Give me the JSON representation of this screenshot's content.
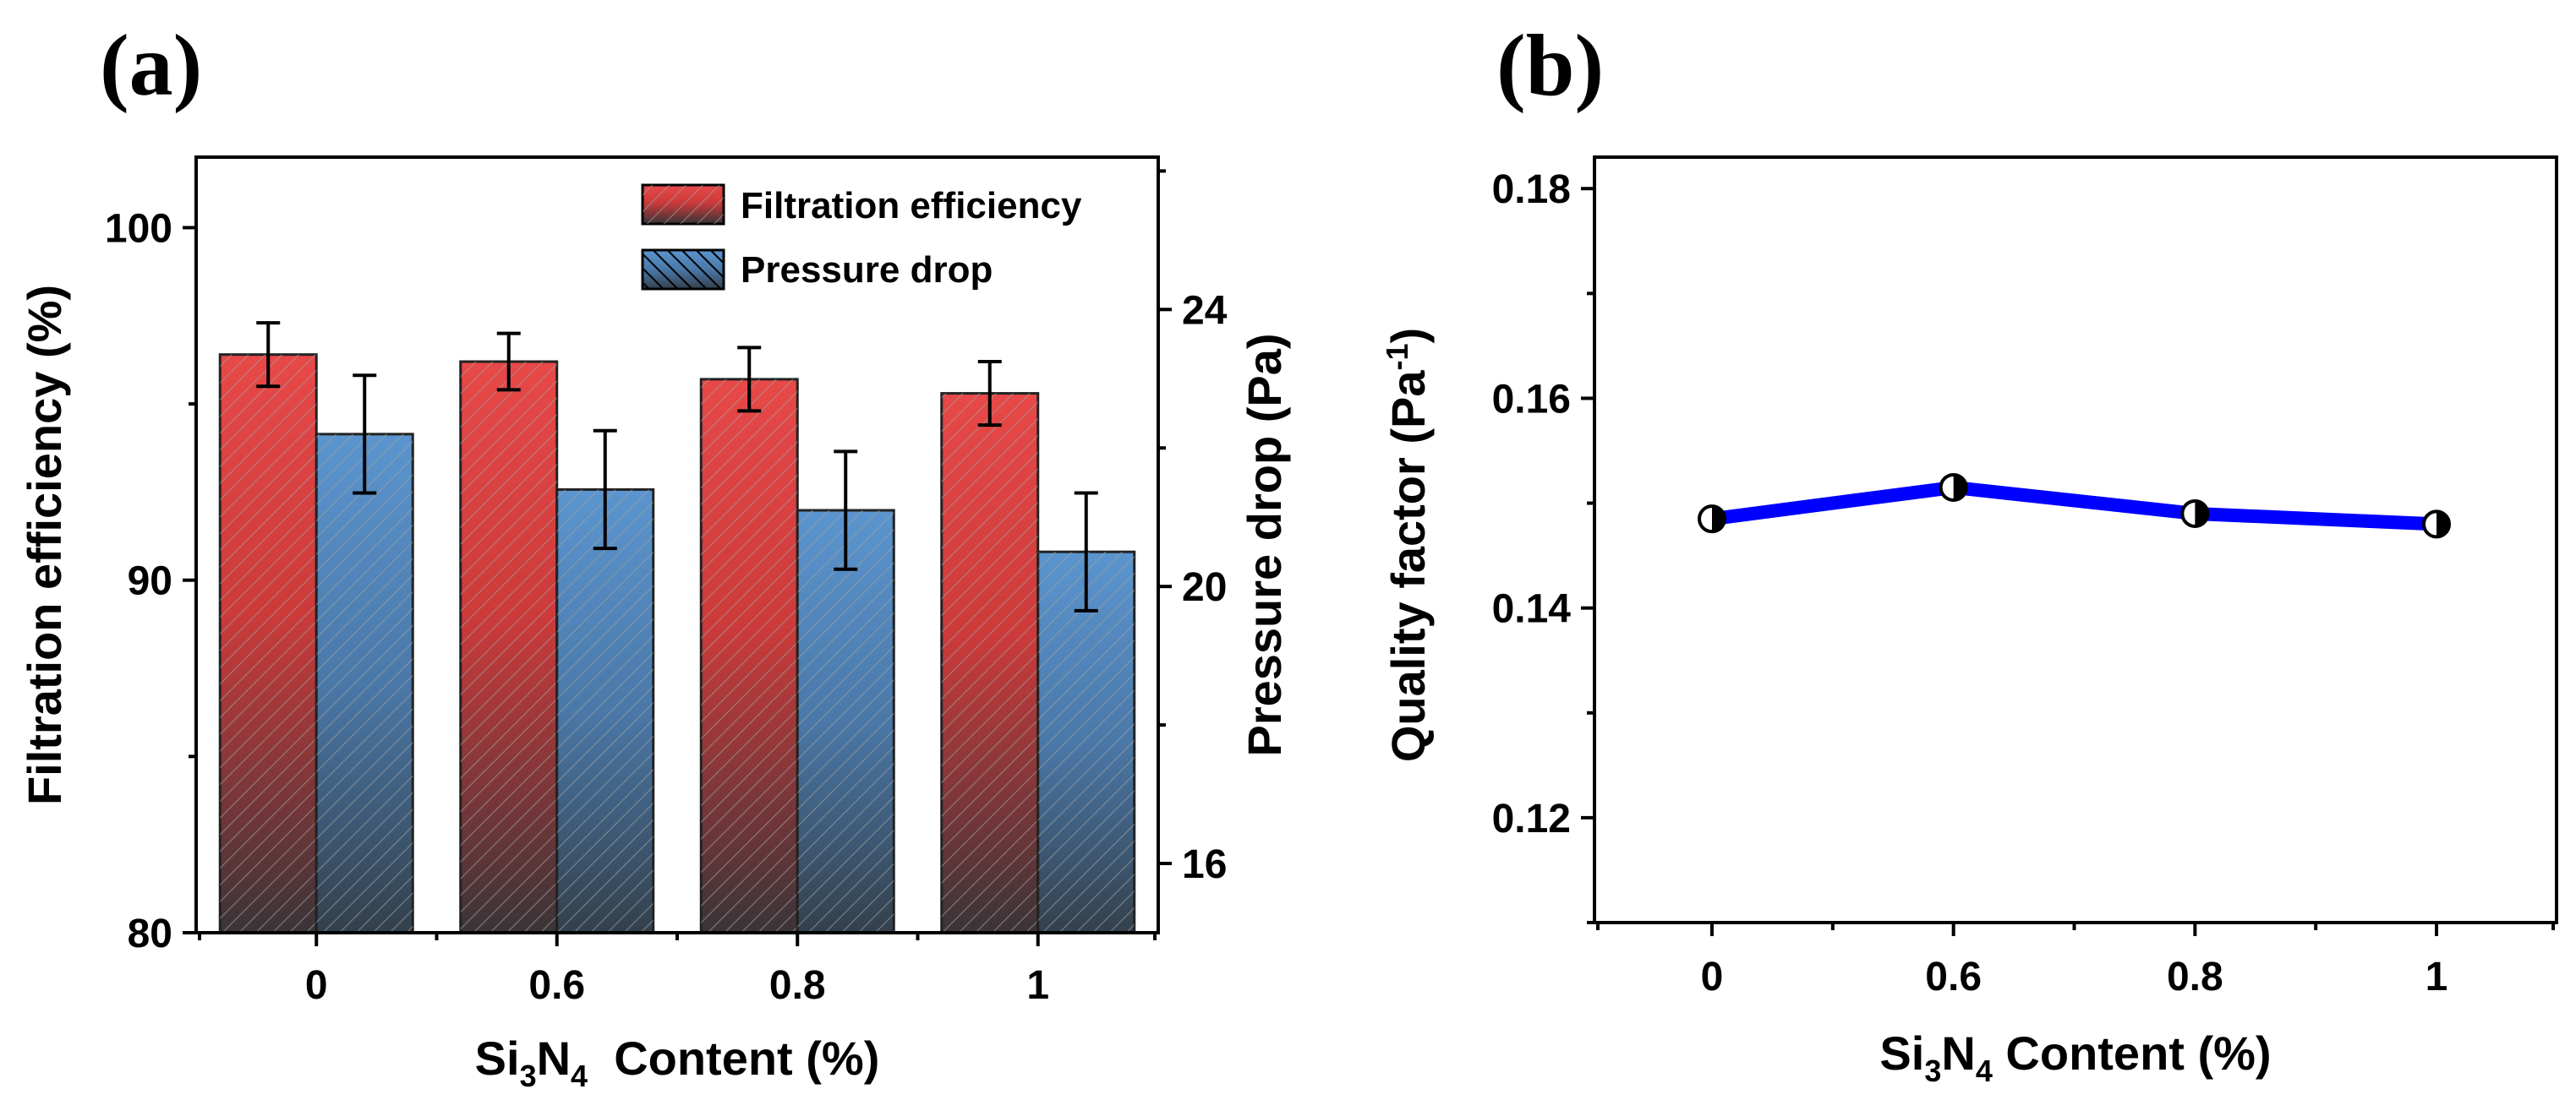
{
  "chart_data": [
    {
      "panel": "(a)",
      "type": "bar",
      "categories": [
        "0",
        "0.6",
        "0.8",
        "1"
      ],
      "xlabel_parts": [
        "Si",
        "3",
        "N",
        "4",
        "  Content (%)"
      ],
      "series": [
        {
          "name": "Filtration efficiency",
          "axis": "left",
          "values": [
            96.4,
            96.2,
            95.7,
            95.3
          ],
          "errors": [
            0.9,
            0.8,
            0.9,
            0.9
          ],
          "color": "#e04545"
        },
        {
          "name": "Pressure drop",
          "axis": "right",
          "values": [
            22.2,
            21.4,
            21.1,
            20.5
          ],
          "errors": [
            0.85,
            0.85,
            0.85,
            0.85
          ],
          "color": "#4a7fb8"
        }
      ],
      "ylabel_left": "Filtration efficiency (%)",
      "ylim_left": [
        80,
        102
      ],
      "yticks_left": [
        80,
        90,
        100
      ],
      "ylabel_right": "Pressure drop (Pa)",
      "ylim_right": [
        15,
        26.2
      ],
      "yticks_right": [
        16,
        20,
        24
      ],
      "legend_position": "top-right"
    },
    {
      "panel": "(b)",
      "type": "line",
      "x": [
        "0",
        "0.6",
        "0.8",
        "1"
      ],
      "y": [
        0.1485,
        0.1515,
        0.149,
        0.148
      ],
      "ylabel_parts": [
        "Quality factor (Pa",
        "-1",
        ")"
      ],
      "xlabel_parts": [
        "Si",
        "3",
        "N",
        "4",
        " Content (%)"
      ],
      "ylim": [
        0.11,
        0.183
      ],
      "yticks": [
        0.12,
        0.14,
        0.16,
        0.18
      ],
      "ytick_labels": [
        "0.12",
        "0.14",
        "0.16",
        "0.18"
      ],
      "color": "#0000ff"
    }
  ]
}
